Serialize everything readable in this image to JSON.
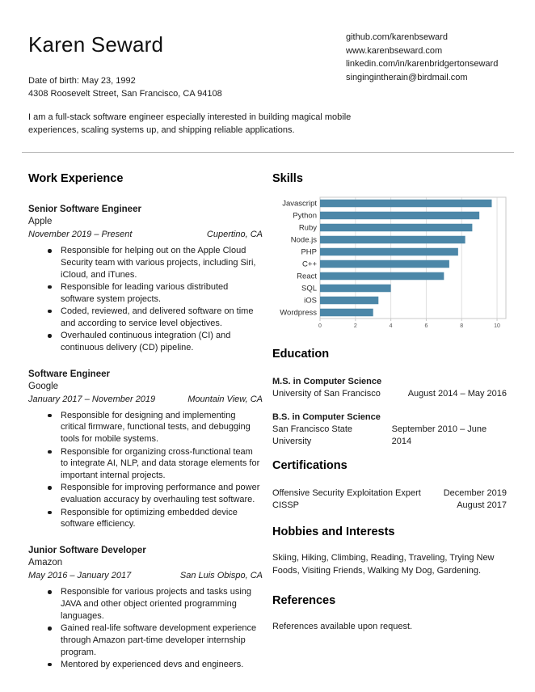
{
  "header": {
    "name": "Karen Seward",
    "date_of_birth": "Date of birth: May 23, 1992",
    "address": "4308 Roosevelt Street, San Francisco, CA 94108",
    "links": [
      "github.com/karenbseward",
      "www.karenbseward.com",
      "linkedin.com/in/karenbridgertonseward",
      "singingintherain@birdmail.com"
    ],
    "summary": "I am a full-stack software engineer especially interested in building magical mobile experiences, scaling systems up, and shipping reliable applications."
  },
  "work_experience": {
    "heading": "Work Experience",
    "jobs": [
      {
        "title": "Senior Software Engineer",
        "company": "Apple",
        "dates": "November 2019 – Present",
        "location": "Cupertino, CA",
        "bullets": [
          "Responsible for helping out on the Apple Cloud Security team with various projects, including Siri, iCloud, and iTunes.",
          "Responsible for leading various distributed software system projects.",
          "Coded, reviewed, and delivered software on time and according to service level objectives.",
          "Overhauled continuous integration (CI) and continuous delivery (CD) pipeline."
        ]
      },
      {
        "title": "Software Engineer",
        "company": "Google",
        "dates": "January 2017 – November 2019",
        "location": "Mountain View, CA",
        "bullets": [
          "Responsible for designing and implementing critical firmware, functional tests, and debugging tools for mobile systems.",
          "Responsible for organizing cross-functional team to integrate AI, NLP, and data storage elements for important internal projects.",
          "Responsible for improving performance and power evaluation accuracy by overhauling test software.",
          "Responsible for optimizing embedded device software efficiency."
        ]
      },
      {
        "title": "Junior Software Developer",
        "company": "Amazon",
        "dates": "May 2016 – January 2017",
        "location": "San Luis Obispo, CA",
        "bullets": [
          "Responsible for various projects and tasks using JAVA and other object oriented programming languages.",
          "Gained real-life software development experience through Amazon part-time developer internship program.",
          "Mentored by experienced devs and engineers."
        ]
      }
    ]
  },
  "skills": {
    "heading": "Skills"
  },
  "chart_data": {
    "type": "bar",
    "orientation": "horizontal",
    "title": "Skills",
    "categories": [
      "Javascript",
      "Python",
      "Ruby",
      "Node.js",
      "PHP",
      "C++",
      "React",
      "SQL",
      "iOS",
      "Wordpress"
    ],
    "values": [
      9.7,
      9.0,
      8.6,
      8.2,
      7.8,
      7.3,
      7.0,
      4.0,
      3.3,
      3.0
    ],
    "xticks": [
      0,
      2,
      4,
      6,
      8,
      10
    ],
    "xlim": [
      0,
      10.5
    ],
    "grid": true,
    "legend": "none",
    "bar_color": "#4c87a8",
    "grid_color": "#e0e0e0",
    "border_color": "#c9c9c9"
  },
  "education": {
    "heading": "Education",
    "entries": [
      {
        "degree": "M.S. in Computer Science",
        "school": "University of San Francisco",
        "dates": "August 2014 – May 2016"
      },
      {
        "degree": "B.S. in Computer Science",
        "school": "San Francisco State University",
        "dates": "September 2010 – June 2014"
      }
    ]
  },
  "certifications": {
    "heading": "Certifications",
    "entries": [
      {
        "name": "Offensive Security Exploitation Expert",
        "date": "December 2019"
      },
      {
        "name": "CISSP",
        "date": "August 2017"
      }
    ]
  },
  "hobbies": {
    "heading": "Hobbies and Interests",
    "text": "Skiing, Hiking, Climbing, Reading, Traveling, Trying New Foods, Visiting Friends, Walking My Dog, Gardening."
  },
  "references": {
    "heading": "References",
    "text": "References available upon request."
  }
}
